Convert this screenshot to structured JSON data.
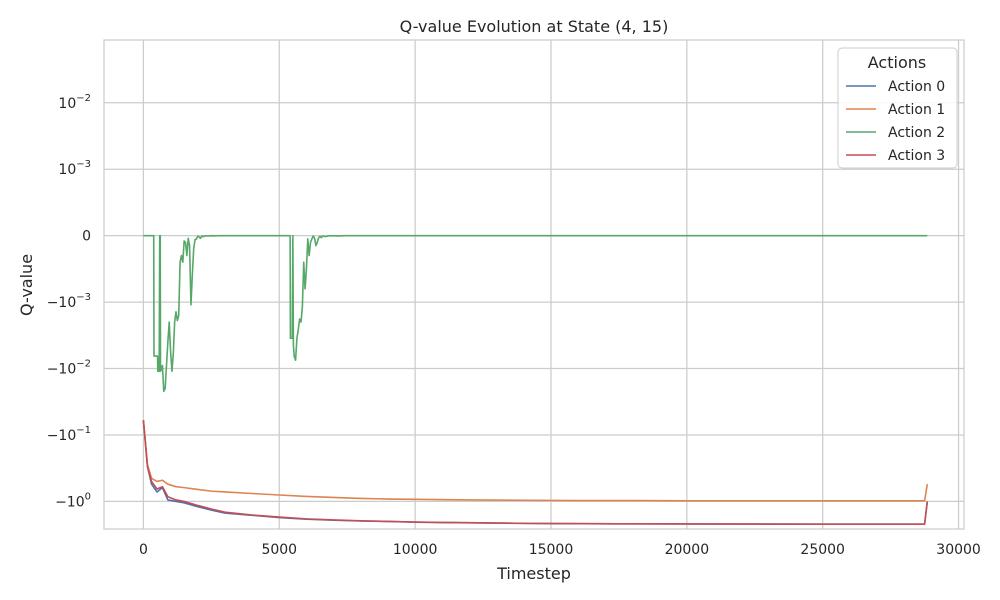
{
  "chart_data": {
    "type": "line",
    "title": "Q-value Evolution at State (4, 15)",
    "xlabel": "Timestep",
    "ylabel": "Q-value",
    "xlim": [
      -1450,
      30200
    ],
    "ylim": [
      -2.6,
      0.088
    ],
    "yscale": "symlog",
    "symlog_linthresh": 0.001,
    "grid": true,
    "x_ticks": [
      {
        "value": 0,
        "label": "0"
      },
      {
        "value": 5000,
        "label": "5000"
      },
      {
        "value": 10000,
        "label": "10000"
      },
      {
        "value": 15000,
        "label": "15000"
      },
      {
        "value": 20000,
        "label": "20000"
      },
      {
        "value": 25000,
        "label": "25000"
      },
      {
        "value": 30000,
        "label": "30000"
      }
    ],
    "y_ticks": [
      {
        "value": 0.01,
        "base": "10",
        "exp": "−2"
      },
      {
        "value": 0.001,
        "base": "10",
        "exp": "−3"
      },
      {
        "value": 0,
        "base": "0",
        "exp": ""
      },
      {
        "value": -0.001,
        "base": "−10",
        "exp": "−3"
      },
      {
        "value": -0.01,
        "base": "−10",
        "exp": "−2"
      },
      {
        "value": -0.1,
        "base": "−10",
        "exp": "−1"
      },
      {
        "value": -1,
        "base": "−10",
        "exp": "0"
      }
    ],
    "legend": {
      "title": "Actions",
      "position": "top-right"
    },
    "series": [
      {
        "name": "Action 0",
        "color": "#4c72b0",
        "points": [
          [
            0,
            -0.06
          ],
          [
            150,
            -0.3
          ],
          [
            300,
            -0.55
          ],
          [
            500,
            -0.72
          ],
          [
            700,
            -0.62
          ],
          [
            900,
            -0.95
          ],
          [
            1200,
            -1.0
          ],
          [
            1500,
            -1.05
          ],
          [
            2000,
            -1.2
          ],
          [
            2500,
            -1.35
          ],
          [
            3000,
            -1.5
          ],
          [
            4000,
            -1.62
          ],
          [
            5000,
            -1.75
          ],
          [
            6000,
            -1.85
          ],
          [
            7000,
            -1.92
          ],
          [
            8000,
            -1.97
          ],
          [
            9000,
            -2.0
          ],
          [
            10000,
            -2.05
          ],
          [
            11000,
            -2.08
          ],
          [
            12000,
            -2.1
          ],
          [
            13000,
            -2.12
          ],
          [
            14000,
            -2.14
          ],
          [
            15000,
            -2.15
          ],
          [
            17500,
            -2.17
          ],
          [
            20000,
            -2.18
          ],
          [
            22500,
            -2.19
          ],
          [
            25000,
            -2.2
          ],
          [
            27500,
            -2.2
          ],
          [
            28750,
            -2.2
          ],
          [
            28850,
            -1.0
          ]
        ]
      },
      {
        "name": "Action 1",
        "color": "#dd8452",
        "points": [
          [
            0,
            -0.06
          ],
          [
            150,
            -0.28
          ],
          [
            300,
            -0.45
          ],
          [
            500,
            -0.5
          ],
          [
            700,
            -0.48
          ],
          [
            900,
            -0.55
          ],
          [
            1200,
            -0.6
          ],
          [
            1500,
            -0.62
          ],
          [
            2000,
            -0.66
          ],
          [
            2500,
            -0.7
          ],
          [
            3000,
            -0.72
          ],
          [
            4000,
            -0.76
          ],
          [
            5000,
            -0.8
          ],
          [
            6000,
            -0.84
          ],
          [
            7000,
            -0.87
          ],
          [
            8000,
            -0.9
          ],
          [
            9000,
            -0.92
          ],
          [
            10000,
            -0.93
          ],
          [
            12000,
            -0.95
          ],
          [
            14000,
            -0.96
          ],
          [
            16000,
            -0.97
          ],
          [
            18000,
            -0.97
          ],
          [
            20000,
            -0.98
          ],
          [
            22500,
            -0.98
          ],
          [
            25000,
            -0.98
          ],
          [
            27500,
            -0.98
          ],
          [
            28750,
            -0.98
          ],
          [
            28850,
            -0.55
          ]
        ]
      },
      {
        "name": "Action 2",
        "color": "#55a868",
        "points": [
          [
            0,
            0
          ],
          [
            380,
            0
          ],
          [
            390,
            -0.0065
          ],
          [
            520,
            -0.0065
          ],
          [
            530,
            -0.011
          ],
          [
            580,
            -0.011
          ],
          [
            600,
            0
          ],
          [
            620,
            0
          ],
          [
            630,
            -0.011
          ],
          [
            700,
            -0.009
          ],
          [
            750,
            -0.022
          ],
          [
            800,
            -0.02
          ],
          [
            850,
            -0.009
          ],
          [
            900,
            -0.004
          ],
          [
            950,
            -0.002
          ],
          [
            1000,
            -0.0055
          ],
          [
            1050,
            -0.011
          ],
          [
            1100,
            -0.006
          ],
          [
            1150,
            -0.002
          ],
          [
            1200,
            -0.0014
          ],
          [
            1250,
            -0.0019
          ],
          [
            1300,
            -0.0016
          ],
          [
            1350,
            -0.0004
          ],
          [
            1400,
            -0.0003
          ],
          [
            1450,
            -0.0004
          ],
          [
            1500,
            -8e-05
          ],
          [
            1550,
            -0.0001
          ],
          [
            1600,
            -0.0003
          ],
          [
            1650,
            -4e-05
          ],
          [
            1700,
            -0.00015
          ],
          [
            1750,
            -0.0011
          ],
          [
            1800,
            -0.0006
          ],
          [
            1850,
            -0.0002
          ],
          [
            1900,
            -6e-05
          ],
          [
            1950,
            -5e-05
          ],
          [
            2000,
            -8e-06
          ],
          [
            2050,
            -2e-05
          ],
          [
            2100,
            -4e-05
          ],
          [
            2150,
            -5e-06
          ],
          [
            2200,
            -1.5e-05
          ],
          [
            2300,
            -2e-06
          ],
          [
            2400,
            -5e-06
          ],
          [
            2500,
            0
          ],
          [
            2600,
            -2e-06
          ],
          [
            2800,
            0
          ],
          [
            5400,
            0
          ],
          [
            5410,
            -0.0035
          ],
          [
            5480,
            -0.0035
          ],
          [
            5500,
            0
          ],
          [
            5520,
            -0.0045
          ],
          [
            5550,
            -0.0065
          ],
          [
            5600,
            -0.0075
          ],
          [
            5650,
            -0.0035
          ],
          [
            5700,
            -0.0026
          ],
          [
            5750,
            -0.0018
          ],
          [
            5800,
            -0.002
          ],
          [
            5850,
            -0.0012
          ],
          [
            5900,
            -0.0004
          ],
          [
            5950,
            -0.0008
          ],
          [
            6000,
            -0.0005
          ],
          [
            6050,
            -5e-05
          ],
          [
            6100,
            -0.0003
          ],
          [
            6150,
            -0.0001
          ],
          [
            6200,
            -5e-05
          ],
          [
            6250,
            -5e-06
          ],
          [
            6300,
            -4e-05
          ],
          [
            6350,
            -0.00015
          ],
          [
            6400,
            -0.0001
          ],
          [
            6450,
            -3e-05
          ],
          [
            6500,
            -1e-05
          ],
          [
            6550,
            -3e-05
          ],
          [
            6600,
            -5e-06
          ],
          [
            6700,
            -1.5e-05
          ],
          [
            6800,
            -3e-06
          ],
          [
            7000,
            -2e-06
          ],
          [
            7200,
            -5e-06
          ],
          [
            7400,
            0
          ],
          [
            10000,
            0
          ],
          [
            20000,
            0
          ],
          [
            28850,
            0
          ]
        ]
      },
      {
        "name": "Action 3",
        "color": "#c44e52",
        "points": [
          [
            0,
            -0.06
          ],
          [
            150,
            -0.3
          ],
          [
            300,
            -0.5
          ],
          [
            500,
            -0.65
          ],
          [
            700,
            -0.6
          ],
          [
            900,
            -0.85
          ],
          [
            1200,
            -0.95
          ],
          [
            1500,
            -1.0
          ],
          [
            2000,
            -1.15
          ],
          [
            2500,
            -1.3
          ],
          [
            3000,
            -1.45
          ],
          [
            4000,
            -1.6
          ],
          [
            5000,
            -1.72
          ],
          [
            6000,
            -1.83
          ],
          [
            7000,
            -1.9
          ],
          [
            8000,
            -1.96
          ],
          [
            9000,
            -2.0
          ],
          [
            10000,
            -2.04
          ],
          [
            11000,
            -2.07
          ],
          [
            12000,
            -2.09
          ],
          [
            13000,
            -2.12
          ],
          [
            14000,
            -2.14
          ],
          [
            15000,
            -2.15
          ],
          [
            17500,
            -2.17
          ],
          [
            20000,
            -2.18
          ],
          [
            22500,
            -2.19
          ],
          [
            25000,
            -2.2
          ],
          [
            27500,
            -2.2
          ],
          [
            28750,
            -2.2
          ],
          [
            28850,
            -1.0
          ]
        ]
      }
    ]
  }
}
